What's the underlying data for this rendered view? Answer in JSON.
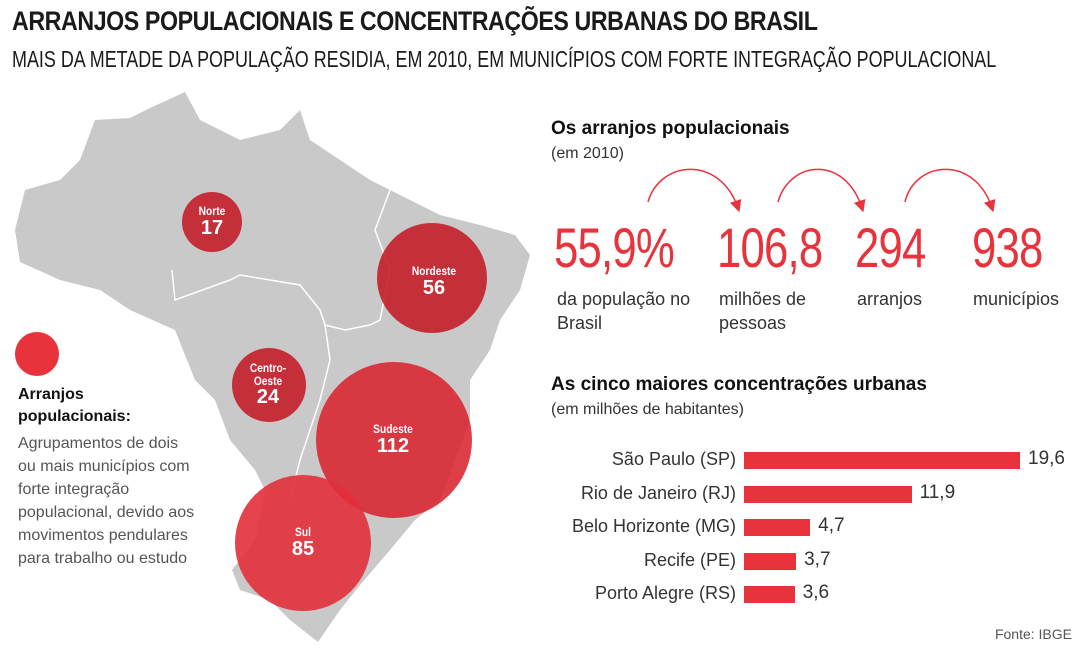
{
  "header": {
    "title": "ARRANJOS POPULACIONAIS E CONCENTRAÇÕES URBANAS DO BRASIL",
    "subtitle": "MAIS DA METADE DA POPULAÇÃO RESIDIA, EM 2010, EM MUNICÍPIOS COM FORTE INTEGRAÇÃO POPULACIONAL"
  },
  "map": {
    "regions": [
      {
        "name": "Norte",
        "value": "17"
      },
      {
        "name": "Nordeste",
        "value": "56"
      },
      {
        "name": "Centro-Oeste",
        "value": "24"
      },
      {
        "name": "Sudeste",
        "value": "112"
      },
      {
        "name": "Sul",
        "value": "85"
      }
    ],
    "legend": {
      "title": "Arranjos populacionais:",
      "text": "Agrupamentos de dois ou mais municípios com forte integração populacional, devido aos movimentos pendulares para trabalho ou estudo"
    },
    "colors": {
      "map": "#c8c8c8",
      "circle": "#c41e2a",
      "legend_circle": "#e8323c"
    }
  },
  "stats": {
    "title": "Os arranjos populacionais",
    "subtitle": "(em 2010)",
    "items": [
      {
        "value": "55,9%",
        "label": "da população no Brasil"
      },
      {
        "value": "106,8",
        "label": "milhões de pessoas"
      },
      {
        "value": "294",
        "label": "arranjos"
      },
      {
        "value": "938",
        "label": "municípios"
      }
    ]
  },
  "chart_data": {
    "type": "bar",
    "orientation": "horizontal",
    "title": "As cinco maiores concentrações urbanas",
    "subtitle": "(em milhões de habitantes)",
    "categories": [
      "São Paulo (SP)",
      "Rio de Janeiro (RJ)",
      "Belo Horizonte (MG)",
      "Recife (PE)",
      "Porto Alegre (RS)"
    ],
    "values": [
      19.6,
      11.9,
      4.7,
      3.7,
      3.6
    ],
    "value_labels": [
      "19,6",
      "11,9",
      "4,7",
      "3,7",
      "3,6"
    ],
    "color": "#e8323c"
  },
  "source": "Fonte: IBGE"
}
